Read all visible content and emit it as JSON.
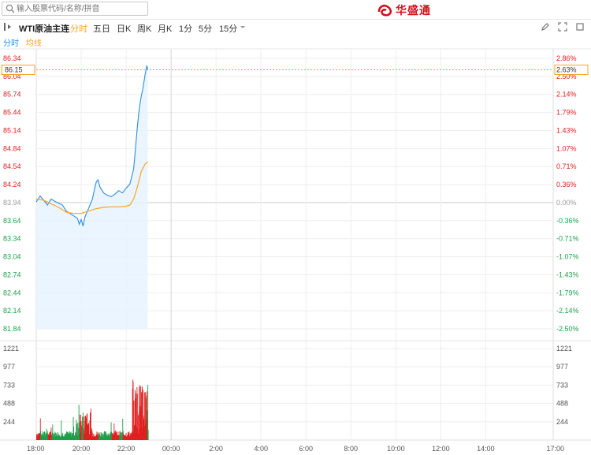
{
  "search": {
    "placeholder": "输入股票代码/名称/拼音"
  },
  "logo": {
    "text": "华盛通"
  },
  "toolbar": {
    "symbol": "WTI原油主连",
    "tabs": [
      "分时",
      "五日",
      "日K",
      "周K",
      "月K",
      "1分",
      "5分",
      "15分"
    ],
    "active_tab": "分时"
  },
  "legend": {
    "price": "分时",
    "avg": "均线"
  },
  "colors": {
    "up": "#e02020",
    "down": "#1f9e4a",
    "price_line": "#2a8fe0",
    "avg_line": "#f5a623",
    "grid": "#eeeeee"
  },
  "chart_data": {
    "type": "line",
    "prev_close": 83.94,
    "current": {
      "price": "86.15",
      "pct": "2.63%"
    },
    "y_ticks": [
      "86.34",
      "86.04",
      "85.74",
      "85.44",
      "85.14",
      "84.84",
      "84.54",
      "84.24",
      "83.94",
      "83.64",
      "83.34",
      "83.04",
      "82.74",
      "82.44",
      "82.14",
      "81.84"
    ],
    "pct_ticks": [
      "2.86%",
      "2.50%",
      "2.14%",
      "1.79%",
      "1.43%",
      "1.07%",
      "0.71%",
      "0.36%",
      "0.00%",
      "-0.36%",
      "-0.71%",
      "-1.07%",
      "-1.43%",
      "-1.79%",
      "-2.14%",
      "-2.50%"
    ],
    "ylim": [
      81.84,
      86.34
    ],
    "x_ticks": [
      "18:00",
      "20:00",
      "22:00",
      "00:00",
      "2:00",
      "4:00",
      "6:00",
      "8:00",
      "10:00",
      "12:00",
      "14:00",
      "17:00"
    ],
    "volume_ticks": [
      "1221",
      "977",
      "733",
      "488",
      "244"
    ],
    "volume_max": 1221,
    "price": [
      [
        0,
        83.95
      ],
      [
        10,
        84.05
      ],
      [
        20,
        83.98
      ],
      [
        30,
        83.9
      ],
      [
        40,
        84.0
      ],
      [
        50,
        83.96
      ],
      [
        60,
        83.93
      ],
      [
        70,
        83.9
      ],
      [
        80,
        83.8
      ],
      [
        90,
        83.76
      ],
      [
        100,
        83.72
      ],
      [
        110,
        83.68
      ],
      [
        115,
        83.58
      ],
      [
        120,
        83.66
      ],
      [
        125,
        83.55
      ],
      [
        130,
        83.7
      ],
      [
        140,
        83.85
      ],
      [
        150,
        84.0
      ],
      [
        155,
        84.15
      ],
      [
        160,
        84.28
      ],
      [
        165,
        84.32
      ],
      [
        170,
        84.2
      ],
      [
        180,
        84.1
      ],
      [
        190,
        84.06
      ],
      [
        200,
        84.04
      ],
      [
        210,
        84.08
      ],
      [
        220,
        84.14
      ],
      [
        230,
        84.1
      ],
      [
        240,
        84.18
      ],
      [
        250,
        84.25
      ],
      [
        260,
        84.5
      ],
      [
        265,
        84.85
      ],
      [
        270,
        85.2
      ],
      [
        275,
        85.5
      ],
      [
        280,
        85.7
      ],
      [
        285,
        85.85
      ],
      [
        290,
        86.05
      ],
      [
        295,
        86.22
      ],
      [
        298,
        86.15
      ]
    ],
    "avg": [
      [
        0,
        84.0
      ],
      [
        20,
        83.98
      ],
      [
        40,
        83.92
      ],
      [
        60,
        83.86
      ],
      [
        80,
        83.78
      ],
      [
        100,
        83.76
      ],
      [
        120,
        83.76
      ],
      [
        140,
        83.8
      ],
      [
        160,
        83.84
      ],
      [
        180,
        83.86
      ],
      [
        200,
        83.87
      ],
      [
        220,
        83.87
      ],
      [
        240,
        83.88
      ],
      [
        250,
        83.9
      ],
      [
        260,
        84.0
      ],
      [
        270,
        84.2
      ],
      [
        280,
        84.45
      ],
      [
        290,
        84.58
      ],
      [
        298,
        84.62
      ]
    ]
  }
}
